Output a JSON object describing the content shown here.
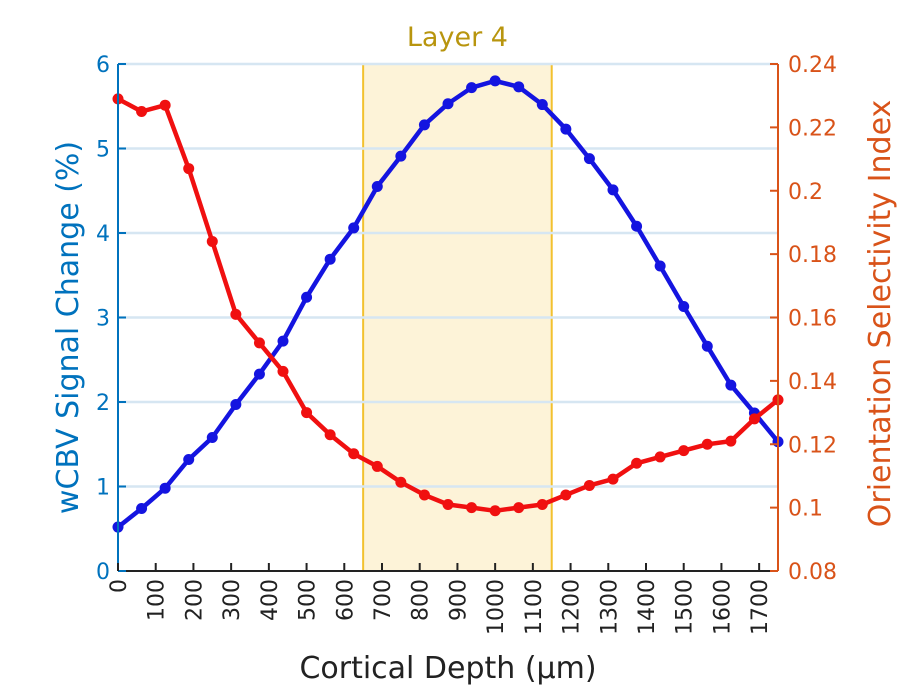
{
  "chart_data": {
    "type": "line",
    "xlabel": "Cortical Depth (μm)",
    "ylabel_left": "wCBV Signal Change (%)",
    "ylabel_right": "Orientation Selectivity Index",
    "xlim": [
      0,
      1750
    ],
    "ylim_left": [
      0,
      6
    ],
    "ylim_right": [
      0.08,
      0.24
    ],
    "x_ticks": [
      0,
      100,
      200,
      300,
      400,
      500,
      600,
      700,
      800,
      900,
      1000,
      1100,
      1200,
      1300,
      1400,
      1500,
      1600,
      1700
    ],
    "x_tick_labels": [
      "0",
      "100",
      "200",
      "300",
      "400",
      "500",
      "600",
      "700",
      "800",
      "900",
      "1000",
      "1100",
      "1200",
      "1300",
      "1400",
      "1500",
      "1600",
      "1700"
    ],
    "y_left_ticks": [
      0,
      1,
      2,
      3,
      4,
      5,
      6
    ],
    "y_left_tick_labels": [
      "0",
      "1",
      "2",
      "3",
      "4",
      "5",
      "6"
    ],
    "y_right_ticks": [
      0.08,
      0.1,
      0.12,
      0.14,
      0.16,
      0.18,
      0.2,
      0.22,
      0.24
    ],
    "y_right_tick_labels": [
      "0.08",
      "0.1",
      "0.12",
      "0.14",
      "0.16",
      "0.18",
      "0.2",
      "0.22",
      "0.24"
    ],
    "grid": "horizontal",
    "band": {
      "label": "Layer 4",
      "x_start": 650,
      "x_end": 1150,
      "fill": "#fdf3d8",
      "stroke": "#f2c12e",
      "label_color": "#b8950e"
    },
    "colors": {
      "left_axis": "#0072bd",
      "right_axis": "#d95319",
      "grid": "#d6e6f2"
    },
    "series": [
      {
        "axis": "left",
        "color": "#1414e0",
        "x": [
          0,
          62.5,
          125,
          187.5,
          250,
          312.5,
          375,
          437.5,
          500,
          562.5,
          625,
          687.5,
          750,
          812.5,
          875,
          937.5,
          1000,
          1062.5,
          1125,
          1187.5,
          1250,
          1312.5,
          1375,
          1437.5,
          1500,
          1562.5,
          1625,
          1687.5,
          1750
        ],
        "values": [
          0.52,
          0.74,
          0.98,
          1.32,
          1.58,
          1.97,
          2.33,
          2.72,
          3.24,
          3.69,
          4.06,
          4.55,
          4.91,
          5.28,
          5.53,
          5.72,
          5.8,
          5.73,
          5.52,
          5.23,
          4.88,
          4.51,
          4.08,
          3.61,
          3.13,
          2.66,
          2.2,
          1.87,
          1.53
        ]
      },
      {
        "axis": "right",
        "color": "#f01010",
        "x": [
          0,
          62.5,
          125,
          187.5,
          250,
          312.5,
          375,
          437.5,
          500,
          562.5,
          625,
          687.5,
          750,
          812.5,
          875,
          937.5,
          1000,
          1062.5,
          1125,
          1187.5,
          1250,
          1312.5,
          1375,
          1437.5,
          1500,
          1562.5,
          1625,
          1687.5,
          1750
        ],
        "values": [
          0.229,
          0.225,
          0.227,
          0.207,
          0.184,
          0.161,
          0.152,
          0.143,
          0.13,
          0.123,
          0.117,
          0.113,
          0.108,
          0.104,
          0.101,
          0.1,
          0.099,
          0.1,
          0.101,
          0.104,
          0.107,
          0.109,
          0.114,
          0.116,
          0.118,
          0.12,
          0.121,
          0.128,
          0.134
        ]
      }
    ]
  }
}
